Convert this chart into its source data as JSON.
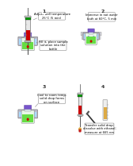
{
  "background_color": "#ffffff",
  "panel_labels": [
    "1",
    "2",
    "3",
    "4"
  ],
  "colors": {
    "background_color": "#ffffff",
    "syringe_body": "#e8e8e8",
    "syringe_plunger": "#009900",
    "syringe_needle": "#555555",
    "syringe_liquid": "#cc0000",
    "bottle_body": "#e8f8e8",
    "bottle_cap": "#7755cc",
    "bottle_liquid": "#66dd44",
    "bottle_dot": "#cc0000",
    "hotplate_body": "#c0c0c8",
    "hotplate_base": "#d0d0d8",
    "hotplate_buttons": "#5555cc",
    "water_bath_water": "#aaddff",
    "water_bath_body": "#bbbbcc",
    "tube_body": "#eeeeee",
    "tube_liquid": "#ddaa44",
    "black_label": "#111111",
    "speech_bubble_bg": "#ffffff",
    "speech_bubble_border": "#888888"
  }
}
